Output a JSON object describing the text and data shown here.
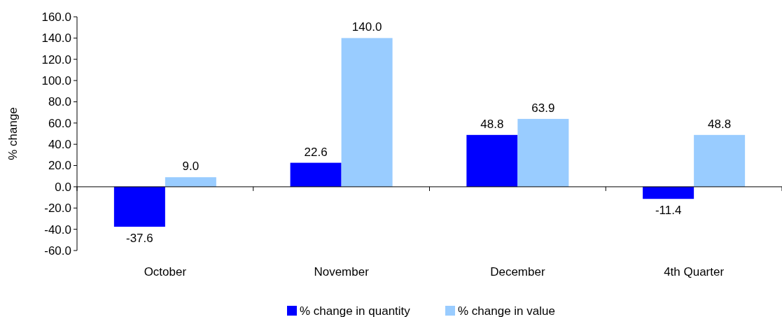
{
  "chart_data": {
    "type": "bar",
    "ylabel": "% change",
    "categories": [
      "October",
      "November",
      "December",
      "4th Quarter"
    ],
    "series": [
      {
        "name": "% change in quantity",
        "color": "#0000ff",
        "values": [
          -37.6,
          22.6,
          48.8,
          -11.4
        ],
        "value_labels": [
          "-37.6",
          "22.6",
          "48.8",
          "-11.4"
        ]
      },
      {
        "name": "% change in value",
        "color": "#99ccff",
        "values": [
          9.0,
          140.0,
          63.9,
          48.8
        ],
        "value_labels": [
          "9.0",
          "140.0",
          "63.9",
          "48.8"
        ]
      }
    ],
    "ylim": [
      -60,
      160
    ],
    "yticks": [
      {
        "value": -60,
        "label": "-60.0"
      },
      {
        "value": -40,
        "label": "-40.0"
      },
      {
        "value": -20,
        "label": "-20.0"
      },
      {
        "value": 0,
        "label": "0.0"
      },
      {
        "value": 20,
        "label": "20.0"
      },
      {
        "value": 40,
        "label": "40.0"
      },
      {
        "value": 60,
        "label": "60.0"
      },
      {
        "value": 80,
        "label": "80.0"
      },
      {
        "value": 100,
        "label": "100.0"
      },
      {
        "value": 120,
        "label": "120.0"
      },
      {
        "value": 140,
        "label": "140.0"
      },
      {
        "value": 160,
        "label": "160.0"
      }
    ],
    "legend": "bottom"
  }
}
